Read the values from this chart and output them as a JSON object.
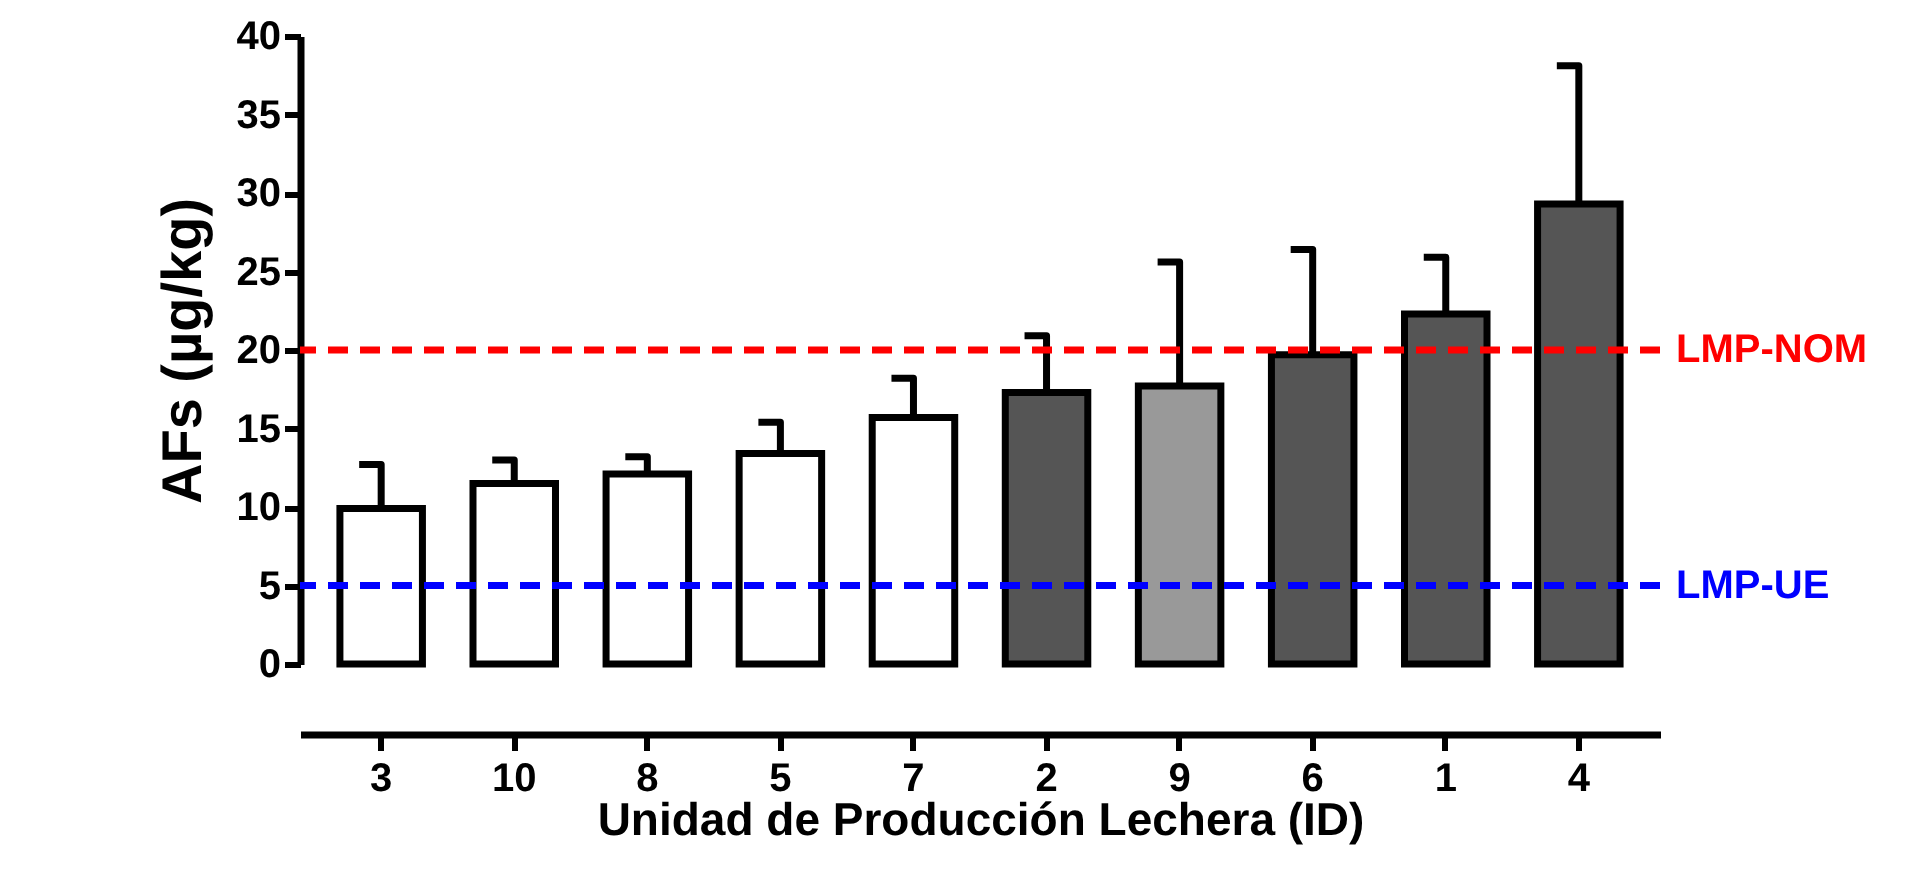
{
  "chart_data": {
    "type": "bar",
    "xlabel": "Unidad de Producción Lechera (ID)",
    "ylabel": "AFs (µg/kg)",
    "categories": [
      "3",
      "10",
      "8",
      "5",
      "7",
      "2",
      "9",
      "6",
      "1",
      "4"
    ],
    "values": [
      9.9,
      11.5,
      12.1,
      13.4,
      15.7,
      17.3,
      17.7,
      19.7,
      22.3,
      29.3
    ],
    "colors": [
      "#ffffff",
      "#ffffff",
      "#ffffff",
      "#ffffff",
      "#ffffff",
      "#555555",
      "#999999",
      "#555555",
      "#555555",
      "#555555"
    ],
    "errors": [
      [
        9.9,
        12.7
      ],
      [
        11.5,
        13
      ],
      [
        12.1,
        13.2
      ],
      [
        13.4,
        15.4
      ],
      [
        15.7,
        18.2
      ],
      [
        17.3,
        20.9
      ],
      [
        17.7,
        25.6
      ],
      [
        19.7,
        26.4
      ],
      [
        22.3,
        25.9
      ],
      [
        29.3,
        38.1
      ]
    ],
    "ylim": [
      0,
      40
    ],
    "yticks": [
      0,
      5,
      10,
      15,
      20,
      25,
      30,
      35,
      40
    ],
    "grid": false,
    "ref_lines": [
      {
        "axis": "y",
        "value": 20,
        "label": "LMP-NOM",
        "color": "#ff0000",
        "line_style": "dashed"
      },
      {
        "axis": "y",
        "value": 5,
        "label": "LMP-UE",
        "color": "#0000ff",
        "line_style": "dashed"
      }
    ]
  }
}
